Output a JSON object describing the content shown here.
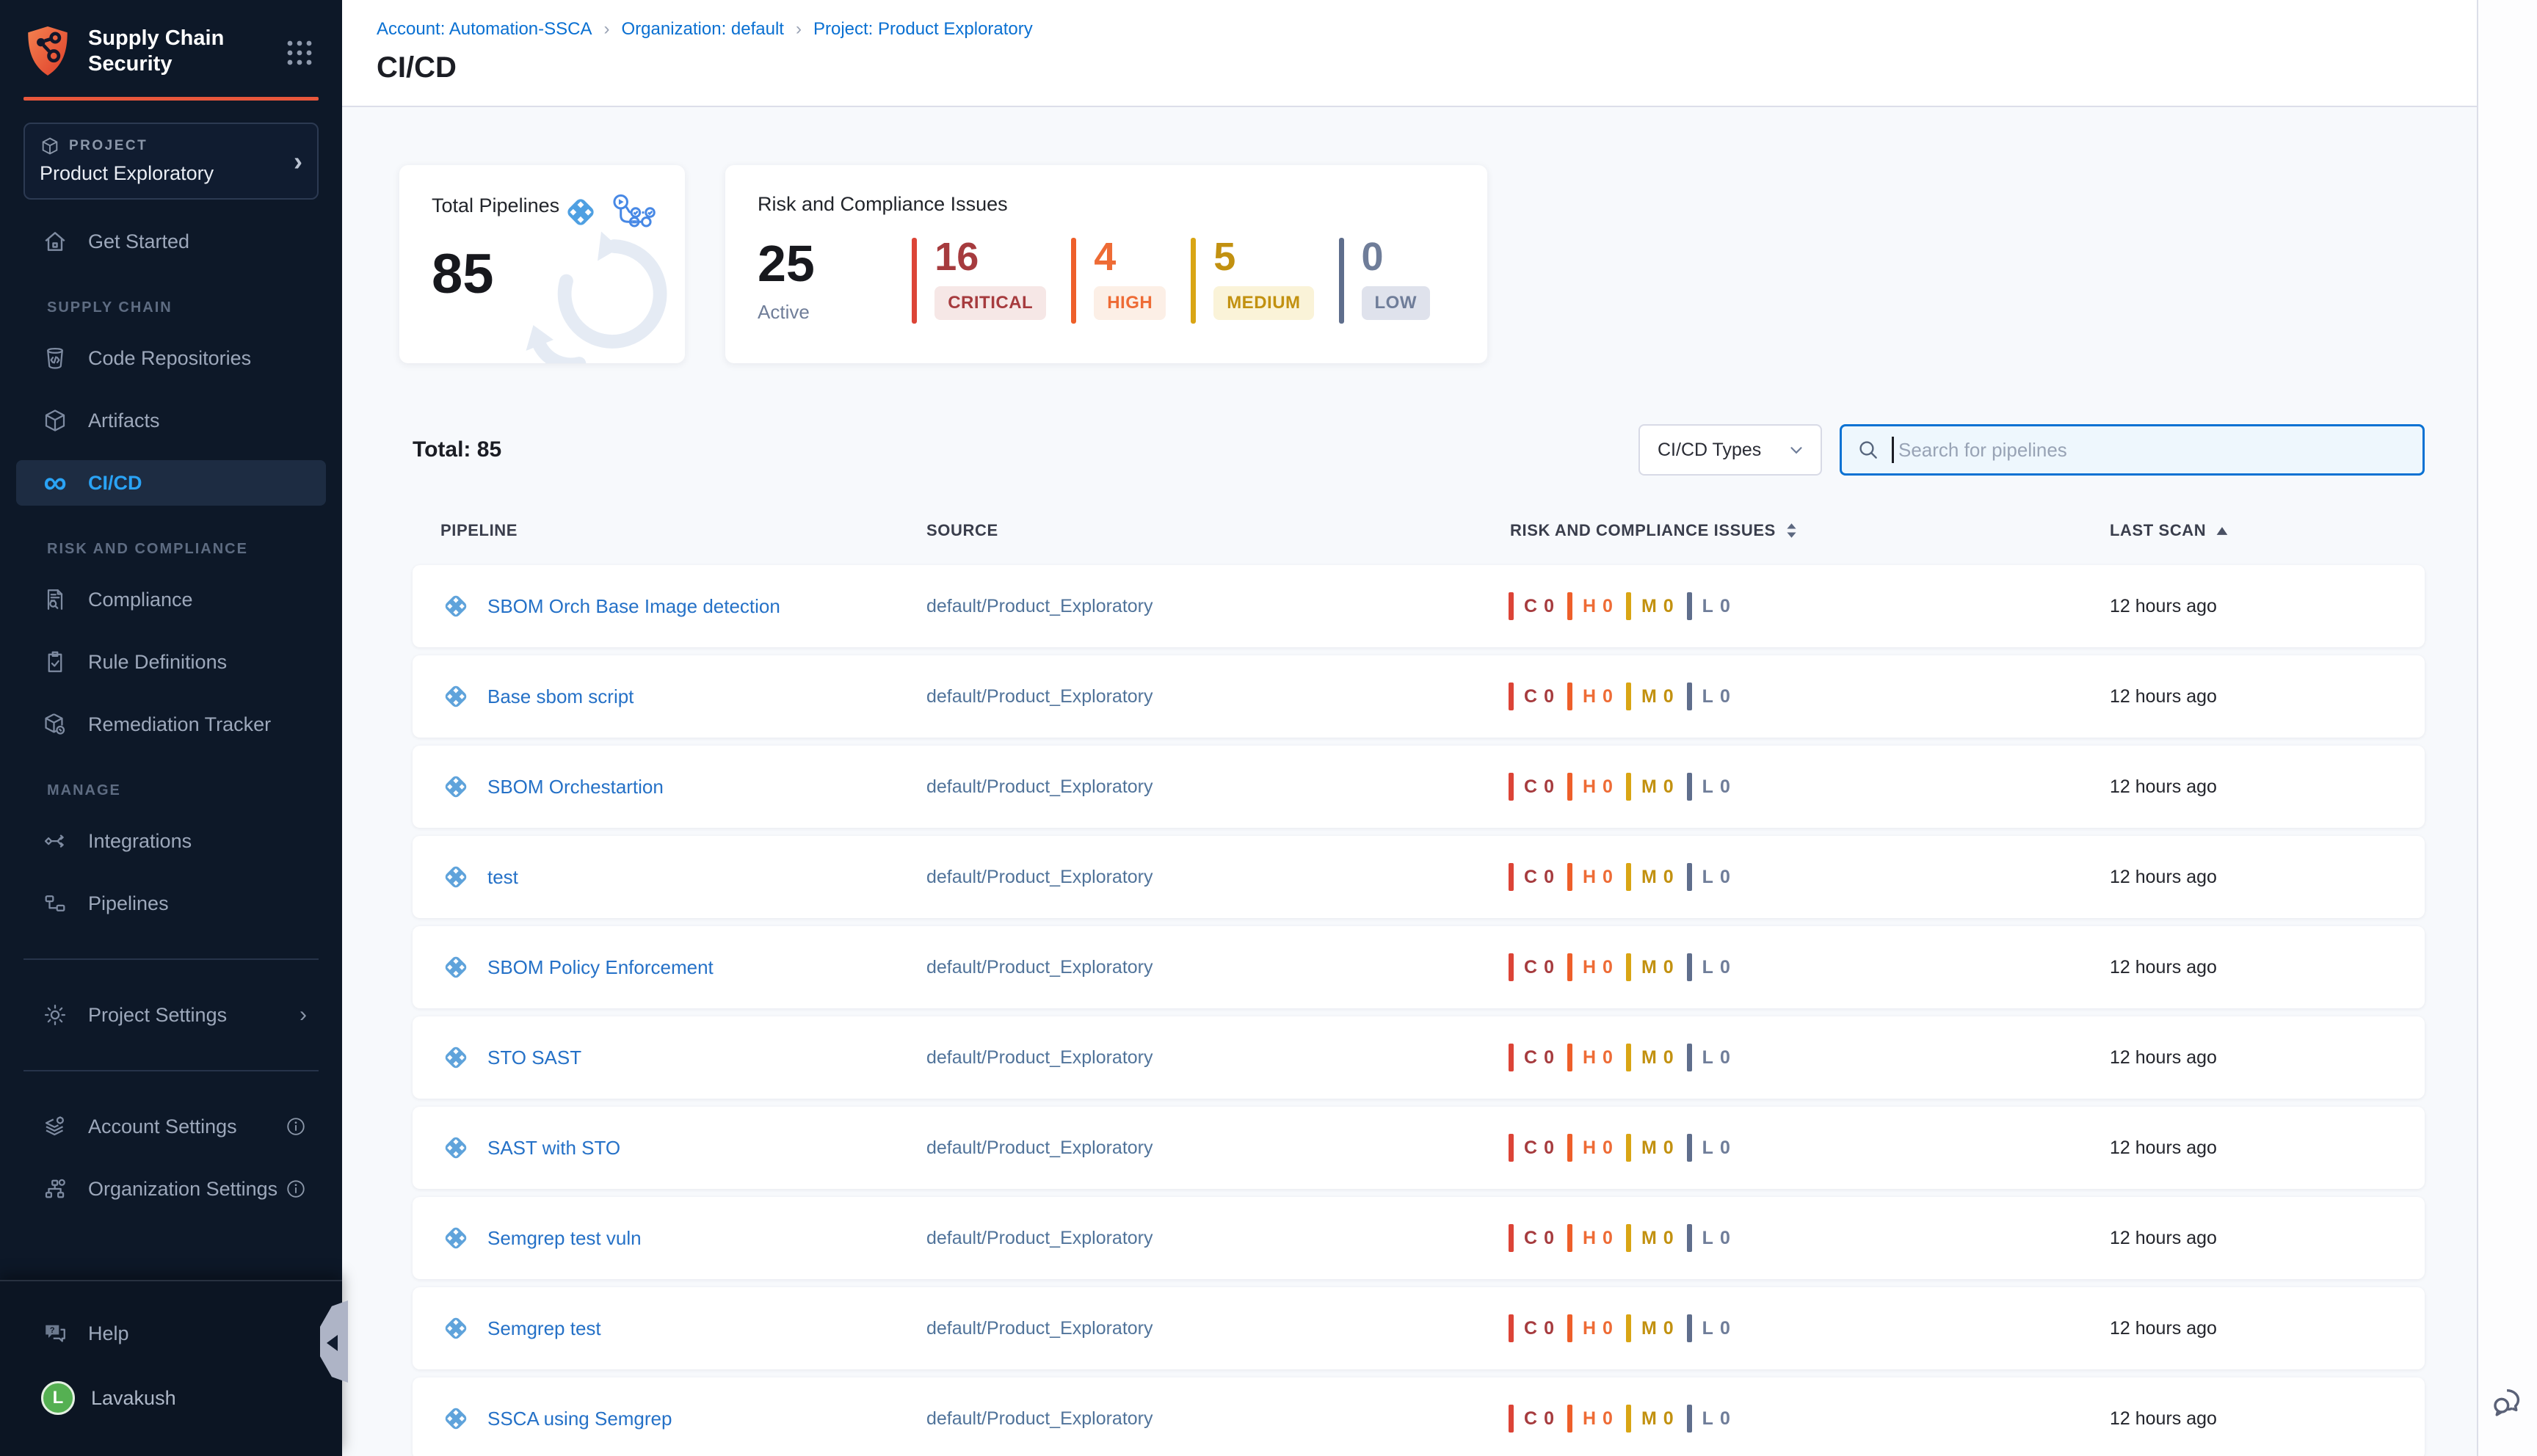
{
  "sidebar": {
    "brand": {
      "line1": "Supply Chain",
      "line2": "Security"
    },
    "project": {
      "label": "PROJECT",
      "name": "Product Exploratory",
      "icon": "cube-icon"
    },
    "get_started": {
      "label": "Get Started",
      "icon": "home-icon"
    },
    "sections": [
      {
        "title": "SUPPLY CHAIN",
        "items": [
          {
            "label": "Code Repositories",
            "icon": "code-repo-icon",
            "active": false
          },
          {
            "label": "Artifacts",
            "icon": "cube-icon",
            "active": false
          },
          {
            "label": "CI/CD",
            "icon": "infinity-icon",
            "active": true
          }
        ]
      },
      {
        "title": "RISK AND COMPLIANCE",
        "items": [
          {
            "label": "Compliance",
            "icon": "document-search-icon",
            "active": false
          },
          {
            "label": "Rule Definitions",
            "icon": "clipboard-check-icon",
            "active": false
          },
          {
            "label": "Remediation Tracker",
            "icon": "box-wrench-icon",
            "active": false
          }
        ]
      },
      {
        "title": "MANAGE",
        "items": [
          {
            "label": "Integrations",
            "icon": "integrations-icon",
            "active": false
          },
          {
            "label": "Pipelines",
            "icon": "pipelines-icon",
            "active": false
          }
        ]
      }
    ],
    "project_settings": {
      "label": "Project Settings",
      "icon": "gear-icon"
    },
    "account_settings": {
      "label": "Account Settings",
      "icon": "layers-gear-icon"
    },
    "organization_settings": {
      "label": "Organization Settings",
      "icon": "org-gear-icon"
    },
    "help": {
      "label": "Help",
      "icon": "help-chat-icon"
    },
    "user": {
      "initial": "L",
      "name": "Lavakush"
    },
    "accent_color": "#E8573C",
    "active_color": "#2AA3F5"
  },
  "header": {
    "breadcrumb": [
      "Account: Automation-SSCA",
      "Organization: default",
      "Project: Product Exploratory"
    ],
    "title": "CI/CD",
    "link_color": "#0A70D2"
  },
  "cards": {
    "total_pipelines": {
      "title": "Total Pipelines",
      "value": "85",
      "icons": [
        "harness-pipeline-icon",
        "workflow-actions-icon"
      ]
    },
    "issues": {
      "title": "Risk and Compliance Issues",
      "active_count": "25",
      "active_label": "Active",
      "severities": [
        {
          "count": "16",
          "label": "CRITICAL",
          "color": "#A63B3E",
          "bar": "#DC4437",
          "badge_bg": "#F6E7E6"
        },
        {
          "count": "4",
          "label": "HIGH",
          "color": "#EE6B35",
          "bar": "#EE5F2A",
          "badge_bg": "#FCEFE6"
        },
        {
          "count": "5",
          "label": "MEDIUM",
          "color": "#C29110",
          "bar": "#D9A514",
          "badge_bg": "#FAF3D8"
        },
        {
          "count": "0",
          "label": "LOW",
          "color": "#6F7D99",
          "bar": "#5F6E8C",
          "badge_bg": "#DFE2EC"
        }
      ]
    }
  },
  "toolbar": {
    "total": "Total: 85",
    "type_filter": "CI/CD Types",
    "search_placeholder": "Search for pipelines"
  },
  "table": {
    "columns": [
      "PIPELINE",
      "SOURCE",
      "RISK AND COMPLIANCE ISSUES",
      "LAST SCAN"
    ],
    "sort": {
      "issues": "both",
      "last_scan": "asc"
    },
    "severity_letters": [
      "C",
      "H",
      "M",
      "L"
    ],
    "row_icon": "harness-pipeline-icon",
    "rows": [
      {
        "name": "SBOM Orch Base Image detection",
        "source": "default/Product_Exploratory",
        "issues": [
          0,
          0,
          0,
          0
        ],
        "last_scan": "12 hours ago"
      },
      {
        "name": "Base sbom script",
        "source": "default/Product_Exploratory",
        "issues": [
          0,
          0,
          0,
          0
        ],
        "last_scan": "12 hours ago"
      },
      {
        "name": "SBOM Orchestartion",
        "source": "default/Product_Exploratory",
        "issues": [
          0,
          0,
          0,
          0
        ],
        "last_scan": "12 hours ago"
      },
      {
        "name": "test",
        "source": "default/Product_Exploratory",
        "issues": [
          0,
          0,
          0,
          0
        ],
        "last_scan": "12 hours ago"
      },
      {
        "name": "SBOM Policy Enforcement",
        "source": "default/Product_Exploratory",
        "issues": [
          0,
          0,
          0,
          0
        ],
        "last_scan": "12 hours ago"
      },
      {
        "name": "STO SAST",
        "source": "default/Product_Exploratory",
        "issues": [
          0,
          0,
          0,
          0
        ],
        "last_scan": "12 hours ago"
      },
      {
        "name": "SAST with STO",
        "source": "default/Product_Exploratory",
        "issues": [
          0,
          0,
          0,
          0
        ],
        "last_scan": "12 hours ago"
      },
      {
        "name": "Semgrep test vuln",
        "source": "default/Product_Exploratory",
        "issues": [
          0,
          0,
          0,
          0
        ],
        "last_scan": "12 hours ago"
      },
      {
        "name": "Semgrep test",
        "source": "default/Product_Exploratory",
        "issues": [
          0,
          0,
          0,
          0
        ],
        "last_scan": "12 hours ago"
      },
      {
        "name": "SSCA using Semgrep",
        "source": "default/Product_Exploratory",
        "issues": [
          0,
          0,
          0,
          0
        ],
        "last_scan": "12 hours ago"
      }
    ]
  }
}
